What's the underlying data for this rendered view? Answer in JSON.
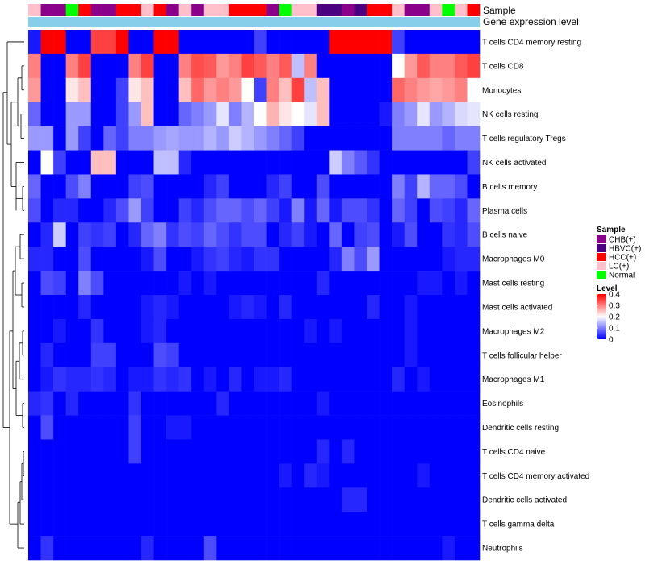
{
  "chart_data": {
    "type": "heatmap",
    "title": "",
    "annotation_labels": {
      "sample": "Sample",
      "gene": "Gene expression level"
    },
    "sample_palette": {
      "CHB(+)": "#8b008b",
      "HBVC(+)": "#4b0082",
      "HCC(+)": "#ff0000",
      "LC(+)": "#ffc0cb",
      "Normal": "#00ff00"
    },
    "sample_groups": [
      "LC(+)",
      "CHB(+)",
      "CHB(+)",
      "Normal",
      "HCC(+)",
      "CHB(+)",
      "CHB(+)",
      "HCC(+)",
      "HCC(+)",
      "LC(+)",
      "HCC(+)",
      "CHB(+)",
      "LC(+)",
      "CHB(+)",
      "LC(+)",
      "LC(+)",
      "HCC(+)",
      "HCC(+)",
      "HCC(+)",
      "CHB(+)",
      "Normal",
      "LC(+)",
      "LC(+)",
      "HBVC(+)",
      "HBVC(+)",
      "CHB(+)",
      "HBVC(+)",
      "HCC(+)",
      "HCC(+)",
      "LC(+)",
      "CHB(+)",
      "CHB(+)",
      "LC(+)",
      "Normal",
      "LC(+)",
      "HCC(+)"
    ],
    "gene_bar_color": "#87ceeb",
    "color_scale": {
      "min": 0,
      "max": 0.4,
      "colors": [
        "#0000ff",
        "#ffffff",
        "#ff0000"
      ],
      "ticks": [
        0,
        0.1,
        0.2,
        0.3,
        0.4
      ],
      "legend_title": "Level"
    },
    "sample_legend_title": "Sample",
    "sample_legend": [
      "CHB(+)",
      "HBVC(+)",
      "HCC(+)",
      "LC(+)",
      "Normal"
    ],
    "rows": [
      "T cells CD4 memory resting",
      "T cells CD8",
      "Monocytes",
      "NK cells resting",
      "T cells regulatory  Tregs",
      "NK cells activated",
      "B cells memory",
      "Plasma cells",
      "B cells naive",
      "Macrophages M0",
      "Mast cells resting",
      "Mast cells activated",
      "Macrophages M2",
      "T cells follicular helper",
      "Macrophages M1",
      "Eosinophils",
      "Dendritic cells resting",
      "T cells CD4 naive",
      "T cells CD4 memory activated",
      "Dendritic cells activated",
      "T cells gamma delta",
      "Neutrophils"
    ],
    "values": [
      [
        0.02,
        0.4,
        0.4,
        0.0,
        0.0,
        0.35,
        0.35,
        0.4,
        0.0,
        0.0,
        0.4,
        0.4,
        0.0,
        0.0,
        0.0,
        0.0,
        0.0,
        0.0,
        0.05,
        0.0,
        0.0,
        0.0,
        0.0,
        0.0,
        0.4,
        0.4,
        0.4,
        0.4,
        0.4,
        0.05,
        0.0,
        0.0,
        0.0,
        0.0,
        0.0,
        0.0
      ],
      [
        0.3,
        0.0,
        0.0,
        0.3,
        0.35,
        0.0,
        0.0,
        0.0,
        0.3,
        0.35,
        0.0,
        0.0,
        0.3,
        0.34,
        0.33,
        0.28,
        0.3,
        0.35,
        0.33,
        0.3,
        0.33,
        0.15,
        0.3,
        0.0,
        0.0,
        0.0,
        0.0,
        0.0,
        0.0,
        0.2,
        0.28,
        0.33,
        0.3,
        0.3,
        0.33,
        0.35
      ],
      [
        0.28,
        0.0,
        0.0,
        0.22,
        0.25,
        0.0,
        0.0,
        0.05,
        0.22,
        0.25,
        0.0,
        0.0,
        0.25,
        0.32,
        0.28,
        0.3,
        0.28,
        0.2,
        0.05,
        0.3,
        0.25,
        0.35,
        0.15,
        0.25,
        0.0,
        0.0,
        0.0,
        0.0,
        0.0,
        0.32,
        0.3,
        0.28,
        0.27,
        0.28,
        0.3,
        0.2
      ],
      [
        0.08,
        0.0,
        0.0,
        0.12,
        0.12,
        0.0,
        0.0,
        0.05,
        0.12,
        0.25,
        0.0,
        0.0,
        0.08,
        0.1,
        0.12,
        0.18,
        0.1,
        0.14,
        0.2,
        0.26,
        0.22,
        0.2,
        0.18,
        0.25,
        0.0,
        0.0,
        0.0,
        0.0,
        0.02,
        0.1,
        0.12,
        0.18,
        0.12,
        0.14,
        0.17,
        0.18
      ],
      [
        0.12,
        0.12,
        0.0,
        0.12,
        0.05,
        0.0,
        0.08,
        0.05,
        0.1,
        0.1,
        0.12,
        0.13,
        0.12,
        0.12,
        0.14,
        0.12,
        0.16,
        0.14,
        0.12,
        0.1,
        0.08,
        0.05,
        0.0,
        0.0,
        0.0,
        0.0,
        0.0,
        0.0,
        0.0,
        0.1,
        0.1,
        0.1,
        0.1,
        0.08,
        0.1,
        0.1
      ],
      [
        0.0,
        0.2,
        0.05,
        0.0,
        0.0,
        0.25,
        0.25,
        0.0,
        0.0,
        0.0,
        0.15,
        0.15,
        0.03,
        0.0,
        0.0,
        0.0,
        0.0,
        0.0,
        0.0,
        0.0,
        0.0,
        0.0,
        0.0,
        0.0,
        0.16,
        0.1,
        0.07,
        0.04,
        0.0,
        0.0,
        0.0,
        0.0,
        0.0,
        0.0,
        0.0,
        0.05
      ],
      [
        0.08,
        0.0,
        0.0,
        0.06,
        0.1,
        0.0,
        0.0,
        0.0,
        0.05,
        0.06,
        0.0,
        0.0,
        0.0,
        0.0,
        0.03,
        0.05,
        0.0,
        0.0,
        0.0,
        0.03,
        0.05,
        0.0,
        0.0,
        0.06,
        0.0,
        0.0,
        0.0,
        0.0,
        0.0,
        0.1,
        0.05,
        0.14,
        0.08,
        0.08,
        0.06,
        0.0
      ],
      [
        0.06,
        0.0,
        0.03,
        0.03,
        0.0,
        0.0,
        0.03,
        0.06,
        0.12,
        0.05,
        0.0,
        0.0,
        0.05,
        0.03,
        0.06,
        0.08,
        0.08,
        0.06,
        0.08,
        0.05,
        0.02,
        0.1,
        0.02,
        0.08,
        0.02,
        0.06,
        0.06,
        0.04,
        0.0,
        0.08,
        0.05,
        0.0,
        0.06,
        0.05,
        0.03,
        0.08
      ],
      [
        0.0,
        0.03,
        0.16,
        0.0,
        0.05,
        0.04,
        0.05,
        0.0,
        0.03,
        0.08,
        0.1,
        0.04,
        0.06,
        0.05,
        0.08,
        0.06,
        0.04,
        0.06,
        0.06,
        0.0,
        0.03,
        0.05,
        0.02,
        0.0,
        0.08,
        0.0,
        0.05,
        0.06,
        0.0,
        0.02,
        0.06,
        0.0,
        0.0,
        0.04,
        0.03,
        0.06
      ],
      [
        0.03,
        0.03,
        0.0,
        0.0,
        0.06,
        0.0,
        0.0,
        0.0,
        0.0,
        0.02,
        0.06,
        0.0,
        0.0,
        0.02,
        0.04,
        0.05,
        0.03,
        0.02,
        0.04,
        0.04,
        0.0,
        0.0,
        0.0,
        0.0,
        0.03,
        0.1,
        0.06,
        0.12,
        0.0,
        0.0,
        0.0,
        0.0,
        0.0,
        0.02,
        0.03,
        0.03
      ],
      [
        0.0,
        0.06,
        0.05,
        0.0,
        0.1,
        0.06,
        0.0,
        0.0,
        0.0,
        0.0,
        0.0,
        0.0,
        0.02,
        0.0,
        0.02,
        0.0,
        0.0,
        0.0,
        0.0,
        0.0,
        0.0,
        0.0,
        0.0,
        0.03,
        0.0,
        0.0,
        0.0,
        0.0,
        0.0,
        0.0,
        0.0,
        0.02,
        0.02,
        0.0,
        0.02,
        0.0
      ],
      [
        0.0,
        0.0,
        0.0,
        0.0,
        0.03,
        0.0,
        0.0,
        0.0,
        0.0,
        0.02,
        0.03,
        0.02,
        0.0,
        0.0,
        0.0,
        0.0,
        0.02,
        0.03,
        0.02,
        0.0,
        0.03,
        0.0,
        0.0,
        0.0,
        0.0,
        0.0,
        0.0,
        0.03,
        0.0,
        0.0,
        0.02,
        0.0,
        0.0,
        0.0,
        0.0,
        0.0
      ],
      [
        0.0,
        0.0,
        0.02,
        0.0,
        0.0,
        0.04,
        0.0,
        0.0,
        0.0,
        0.02,
        0.03,
        0.0,
        0.0,
        0.0,
        0.0,
        0.0,
        0.0,
        0.0,
        0.0,
        0.0,
        0.0,
        0.0,
        0.02,
        0.0,
        0.02,
        0.0,
        0.0,
        0.0,
        0.0,
        0.0,
        0.02,
        0.0,
        0.0,
        0.0,
        0.0,
        0.0
      ],
      [
        0.0,
        0.03,
        0.0,
        0.0,
        0.0,
        0.05,
        0.05,
        0.0,
        0.0,
        0.0,
        0.06,
        0.05,
        0.0,
        0.0,
        0.0,
        0.0,
        0.0,
        0.0,
        0.0,
        0.0,
        0.0,
        0.0,
        0.0,
        0.0,
        0.0,
        0.0,
        0.0,
        0.0,
        0.0,
        0.0,
        0.02,
        0.0,
        0.0,
        0.0,
        0.0,
        0.0
      ],
      [
        0.0,
        0.02,
        0.04,
        0.03,
        0.03,
        0.04,
        0.03,
        0.0,
        0.02,
        0.02,
        0.04,
        0.03,
        0.04,
        0.0,
        0.02,
        0.0,
        0.03,
        0.0,
        0.02,
        0.02,
        0.03,
        0.0,
        0.0,
        0.0,
        0.0,
        0.0,
        0.0,
        0.0,
        0.0,
        0.03,
        0.0,
        0.02,
        0.0,
        0.0,
        0.0,
        0.0
      ],
      [
        0.03,
        0.04,
        0.0,
        0.03,
        0.0,
        0.0,
        0.0,
        0.0,
        0.04,
        0.0,
        0.0,
        0.0,
        0.0,
        0.0,
        0.0,
        0.03,
        0.0,
        0.0,
        0.0,
        0.0,
        0.0,
        0.0,
        0.0,
        0.02,
        0.0,
        0.0,
        0.0,
        0.0,
        0.0,
        0.0,
        0.0,
        0.0,
        0.0,
        0.0,
        0.0,
        0.0
      ],
      [
        0.0,
        0.06,
        0.0,
        0.0,
        0.0,
        0.0,
        0.0,
        0.0,
        0.05,
        0.0,
        0.0,
        0.02,
        0.02,
        0.0,
        0.0,
        0.0,
        0.0,
        0.0,
        0.0,
        0.0,
        0.0,
        0.0,
        0.0,
        0.0,
        0.0,
        0.0,
        0.0,
        0.0,
        0.0,
        0.0,
        0.0,
        0.0,
        0.0,
        0.0,
        0.0,
        0.0
      ],
      [
        0.0,
        0.0,
        0.0,
        0.0,
        0.0,
        0.0,
        0.0,
        0.0,
        0.05,
        0.0,
        0.0,
        0.0,
        0.0,
        0.0,
        0.0,
        0.0,
        0.0,
        0.0,
        0.0,
        0.0,
        0.0,
        0.0,
        0.0,
        0.03,
        0.0,
        0.03,
        0.0,
        0.0,
        0.0,
        0.0,
        0.0,
        0.0,
        0.0,
        0.0,
        0.0,
        0.0
      ],
      [
        0.0,
        0.0,
        0.0,
        0.0,
        0.0,
        0.0,
        0.0,
        0.0,
        0.0,
        0.0,
        0.0,
        0.0,
        0.0,
        0.0,
        0.0,
        0.0,
        0.0,
        0.0,
        0.0,
        0.0,
        0.02,
        0.0,
        0.03,
        0.02,
        0.0,
        0.0,
        0.0,
        0.0,
        0.0,
        0.0,
        0.0,
        0.02,
        0.0,
        0.0,
        0.0,
        0.0
      ],
      [
        0.0,
        0.0,
        0.0,
        0.0,
        0.0,
        0.0,
        0.0,
        0.0,
        0.0,
        0.0,
        0.0,
        0.0,
        0.0,
        0.0,
        0.0,
        0.0,
        0.0,
        0.0,
        0.0,
        0.0,
        0.0,
        0.0,
        0.0,
        0.0,
        0.0,
        0.03,
        0.03,
        0.0,
        0.0,
        0.0,
        0.0,
        0.0,
        0.0,
        0.0,
        0.0,
        0.0
      ],
      [
        0.0,
        0.0,
        0.0,
        0.0,
        0.0,
        0.0,
        0.0,
        0.0,
        0.0,
        0.0,
        0.0,
        0.0,
        0.0,
        0.0,
        0.0,
        0.0,
        0.0,
        0.0,
        0.0,
        0.0,
        0.0,
        0.0,
        0.0,
        0.0,
        0.0,
        0.0,
        0.0,
        0.0,
        0.0,
        0.0,
        0.0,
        0.0,
        0.0,
        0.0,
        0.0,
        0.0
      ],
      [
        0.0,
        0.04,
        0.0,
        0.0,
        0.0,
        0.0,
        0.0,
        0.0,
        0.0,
        0.03,
        0.0,
        0.0,
        0.0,
        0.0,
        0.06,
        0.0,
        0.0,
        0.0,
        0.0,
        0.0,
        0.0,
        0.0,
        0.0,
        0.0,
        0.0,
        0.0,
        0.0,
        0.0,
        0.0,
        0.0,
        0.0,
        0.0,
        0.0,
        0.02,
        0.0,
        0.0
      ]
    ]
  }
}
